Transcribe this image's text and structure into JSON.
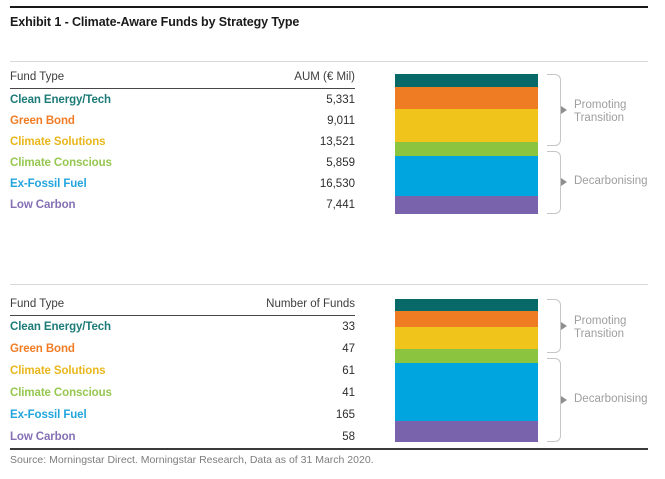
{
  "title": "Exhibit 1 - Climate-Aware Funds by Strategy Type",
  "footer": {
    "source": "Source: Morningstar Direct. Morningstar Research, Data as of 31 March 2020."
  },
  "groups": {
    "promoting": "Promoting Transition",
    "decarbonising": "Decarbonising"
  },
  "tables": [
    {
      "columns": {
        "fund_type": "Fund Type",
        "value": "AUM (€ Mil)"
      },
      "rows": [
        {
          "label": "Clean Energy/Tech",
          "value": "5,331",
          "color": "#1d7b78"
        },
        {
          "label": "Green Bond",
          "value": "9,011",
          "color": "#f07d26"
        },
        {
          "label": "Climate Solutions",
          "value": "13,521",
          "color": "#e9b71d"
        },
        {
          "label": "Climate Conscious",
          "value": "5,859",
          "color": "#96c751"
        },
        {
          "label": "Ex-Fossil Fuel",
          "value": "16,530",
          "color": "#22a5dd"
        },
        {
          "label": "Low Carbon",
          "value": "7,441",
          "color": "#8570b4"
        }
      ]
    },
    {
      "columns": {
        "fund_type": "Fund Type",
        "value": "Number of Funds"
      },
      "rows": [
        {
          "label": "Clean Energy/Tech",
          "value": "33",
          "color": "#1d7b78"
        },
        {
          "label": "Green Bond",
          "value": "47",
          "color": "#f07d26"
        },
        {
          "label": "Climate Solutions",
          "value": "61",
          "color": "#e9b71d"
        },
        {
          "label": "Climate Conscious",
          "value": "41",
          "color": "#96c751"
        },
        {
          "label": "Ex-Fossil Fuel",
          "value": "165",
          "color": "#22a5dd"
        },
        {
          "label": "Low Carbon",
          "value": "58",
          "color": "#8570b4"
        }
      ]
    }
  ],
  "chart_data": [
    {
      "type": "bar",
      "subtype": "single-stacked-column",
      "title": "AUM (€ Mil)",
      "categories": [
        "Clean Energy/Tech",
        "Green Bond",
        "Climate Solutions",
        "Climate Conscious",
        "Ex-Fossil Fuel",
        "Low Carbon"
      ],
      "values": [
        5331,
        9011,
        13521,
        5859,
        16530,
        7441
      ],
      "colors": [
        "#076a69",
        "#ef7c23",
        "#f0c41a",
        "#8bc540",
        "#00a5e0",
        "#7963ad"
      ],
      "legend_position": "none",
      "annotations": [
        {
          "label": "Promoting Transition",
          "covers": [
            "Clean Energy/Tech",
            "Green Bond",
            "Climate Solutions"
          ]
        },
        {
          "label": "Decarbonising",
          "covers": [
            "Climate Conscious",
            "Ex-Fossil Fuel",
            "Low Carbon"
          ]
        }
      ]
    },
    {
      "type": "bar",
      "subtype": "single-stacked-column",
      "title": "Number of Funds",
      "categories": [
        "Clean Energy/Tech",
        "Green Bond",
        "Climate Solutions",
        "Climate Conscious",
        "Ex-Fossil Fuel",
        "Low Carbon"
      ],
      "values": [
        33,
        47,
        61,
        41,
        165,
        58
      ],
      "colors": [
        "#076a69",
        "#ef7c23",
        "#f0c41a",
        "#8bc540",
        "#00a5e0",
        "#7963ad"
      ],
      "legend_position": "none",
      "annotations": [
        {
          "label": "Promoting Transition",
          "covers": [
            "Clean Energy/Tech",
            "Green Bond",
            "Climate Solutions"
          ]
        },
        {
          "label": "Decarbonising",
          "covers": [
            "Climate Conscious",
            "Ex-Fossil Fuel",
            "Low Carbon"
          ]
        }
      ]
    }
  ]
}
